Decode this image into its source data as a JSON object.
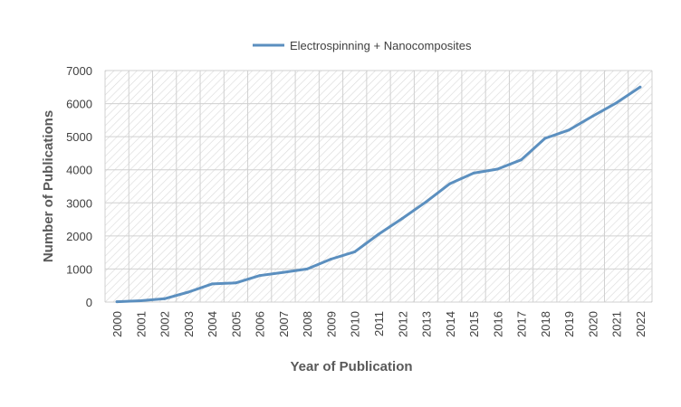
{
  "chart_data": {
    "type": "line",
    "title": "",
    "xlabel": "Year of Publication",
    "ylabel": "Number of Publications",
    "ylim": [
      0,
      7000
    ],
    "yticks": [
      0,
      1000,
      2000,
      3000,
      4000,
      5000,
      6000,
      7000
    ],
    "grid": true,
    "legend_position": "top",
    "categories": [
      "2000",
      "2001",
      "2002",
      "2003",
      "2004",
      "2005",
      "2006",
      "2007",
      "2008",
      "2009",
      "2010",
      "2011",
      "2012",
      "2013",
      "2014",
      "2015",
      "2016",
      "2017",
      "2018",
      "2019",
      "2020",
      "2021",
      "2022"
    ],
    "series": [
      {
        "name": "Electrospinning + Nanocomposites",
        "color": "#5b8fbf",
        "values": [
          10,
          40,
          100,
          300,
          550,
          580,
          800,
          900,
          1000,
          1300,
          1520,
          2050,
          2530,
          3030,
          3580,
          3900,
          4020,
          4300,
          4950,
          5200,
          5620,
          6020,
          6500
        ]
      }
    ]
  }
}
